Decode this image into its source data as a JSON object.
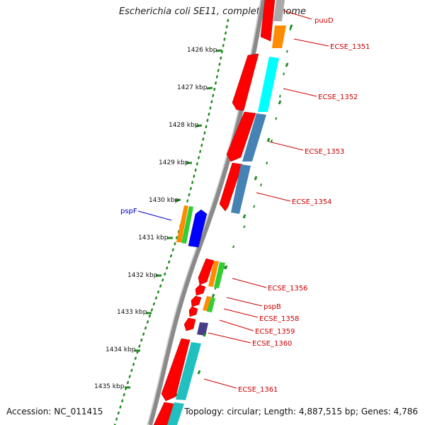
{
  "title": "Escherichia coli SE11, complete genome",
  "footer": {
    "accession": "Accession: NC_011415",
    "topology": "Topology: circular; Length: 4,887,515 bp; Genes: 4,786"
  },
  "colors": {
    "backbone": "#8a8a8a",
    "ruler": "#228b22",
    "label_red": "#cc0000",
    "label_blue": "#0000cc"
  },
  "ruler_ticks": [
    "1426 kbp",
    "1427 kbp",
    "1428 kbp",
    "1429 kbp",
    "1430 kbp",
    "1431 kbp",
    "1432 kbp",
    "1433 kbp",
    "1434 kbp",
    "1435 kbp"
  ],
  "gene_labels": [
    "puuD",
    "ECSE_1351",
    "ECSE_1352",
    "ECSE_1353",
    "ECSE_1354",
    "pspF",
    "ECSE_1356",
    "pspB",
    "ECSE_1358",
    "ECSE_1359",
    "ECSE_1360",
    "ECSE_1361"
  ]
}
